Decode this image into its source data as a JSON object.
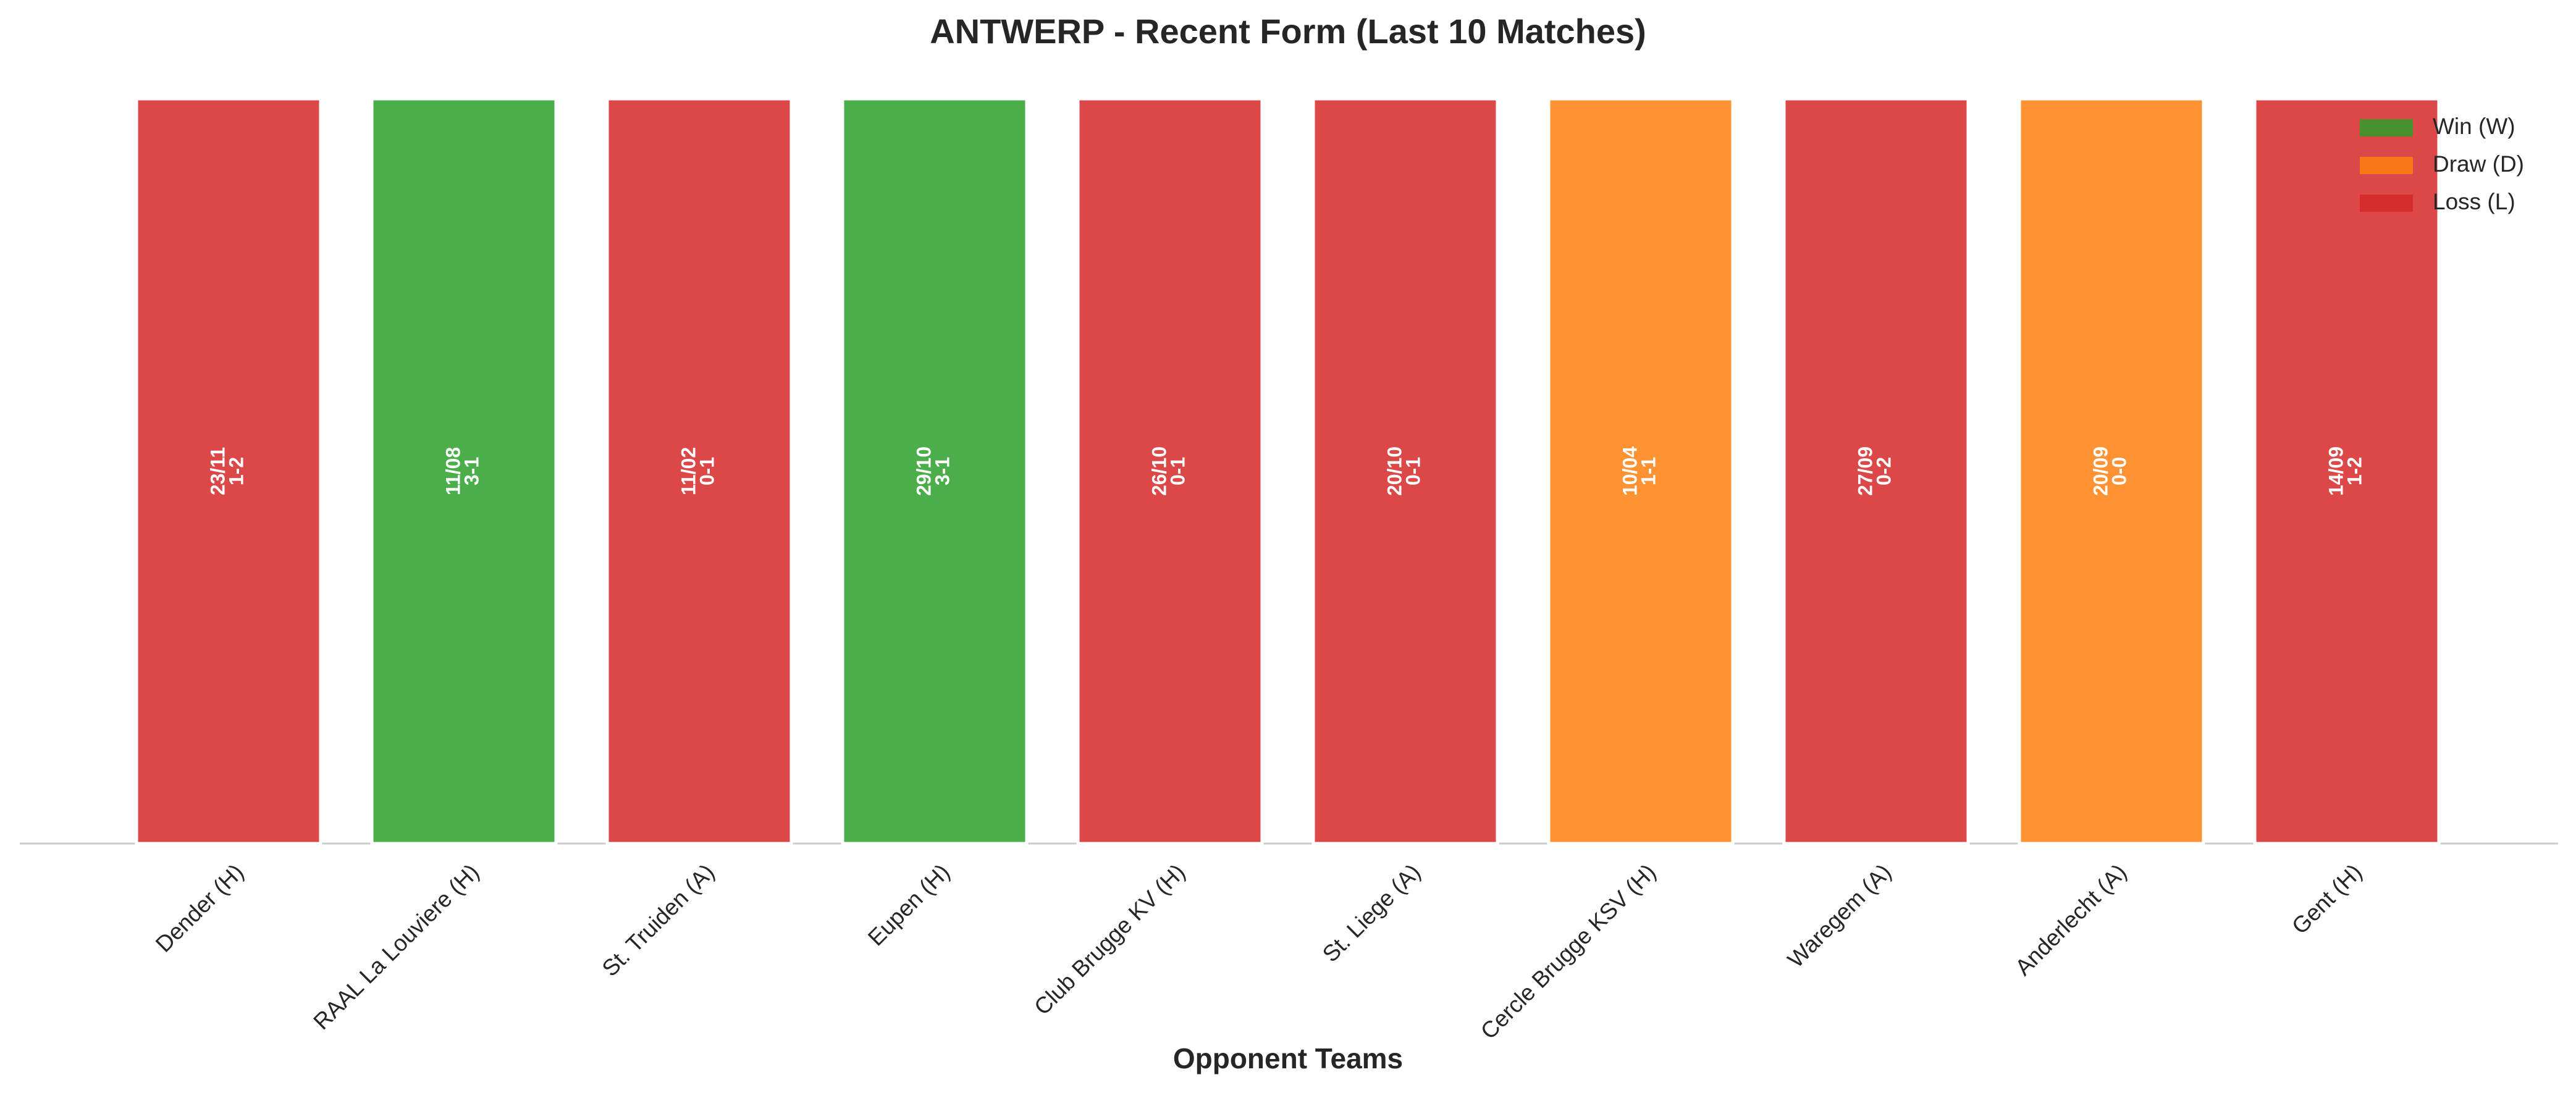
{
  "chart_data": {
    "type": "bar",
    "title": "ANTWERP - Recent Form (Last 10 Matches)",
    "x_label": "Opponent Teams",
    "categories": [
      "Dender (H)",
      "RAAL La Louviere (H)",
      "St. Truiden (A)",
      "Eupen (H)",
      "Club Brugge KV (H)",
      "St. Liege (A)",
      "Cercle Brugge KSV (H)",
      "Waregem (A)",
      "Anderlecht (A)",
      "Gent (H)"
    ],
    "values": [
      1,
      1,
      1,
      1,
      1,
      1,
      1,
      1,
      1,
      1
    ],
    "colors": [
      "#d62728",
      "#2ca02c",
      "#d62728",
      "#2ca02c",
      "#d62728",
      "#d62728",
      "#ff7f0e",
      "#d62728",
      "#ff7f0e",
      "#d62728"
    ],
    "bar_labels": [
      [
        "23/11",
        "1-2"
      ],
      [
        "11/08",
        "3-1"
      ],
      [
        "11/02",
        "0-1"
      ],
      [
        "29/10",
        "3-1"
      ],
      [
        "26/10",
        "0-1"
      ],
      [
        "20/10",
        "0-1"
      ],
      [
        "10/04",
        "1-1"
      ],
      [
        "27/09",
        "0-2"
      ],
      [
        "20/09",
        "0-0"
      ],
      [
        "14/09",
        "1-2"
      ]
    ],
    "ylim": [
      0,
      1
    ],
    "legend_position": "upper right",
    "legend": [
      {
        "name": "Win (W)",
        "color": "#2ca02c"
      },
      {
        "name": "Draw (D)",
        "color": "#ff7f0e"
      },
      {
        "name": "Loss (L)",
        "color": "#d62728"
      }
    ]
  }
}
